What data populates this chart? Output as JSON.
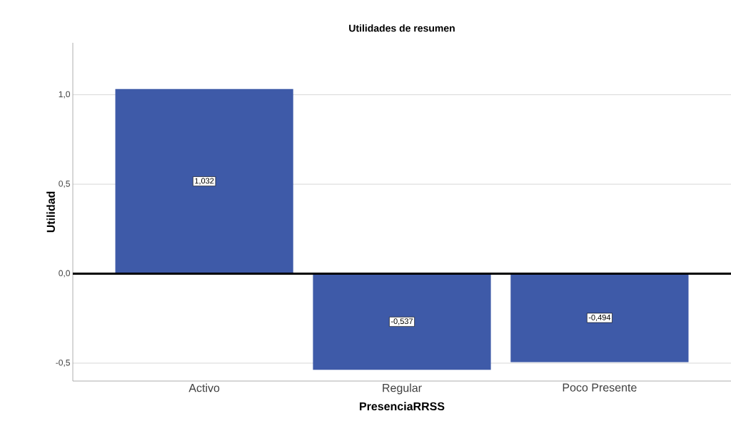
{
  "chart_data": {
    "type": "bar",
    "title": "Utilidades de resumen",
    "xlabel": "PresenciaRRSS",
    "ylabel": "Utilidad",
    "categories": [
      "Activo",
      "Regular",
      "Poco Presente"
    ],
    "values": [
      1.032,
      -0.537,
      -0.494
    ],
    "value_labels": [
      "1,032",
      "-0,537",
      "-0,494"
    ],
    "color": "#3e5aa8",
    "ylim": [
      -0.6,
      1.29
    ],
    "yticks": [
      {
        "value": -0.5,
        "label": "-0,5"
      },
      {
        "value": 0,
        "label": "0,0"
      },
      {
        "value": 0.5,
        "label": "0,5"
      },
      {
        "value": 1,
        "label": "1,0"
      }
    ],
    "grid": "y",
    "ref_lines": [
      {
        "axis": "y",
        "value": 0,
        "color": "#000000"
      }
    ]
  }
}
